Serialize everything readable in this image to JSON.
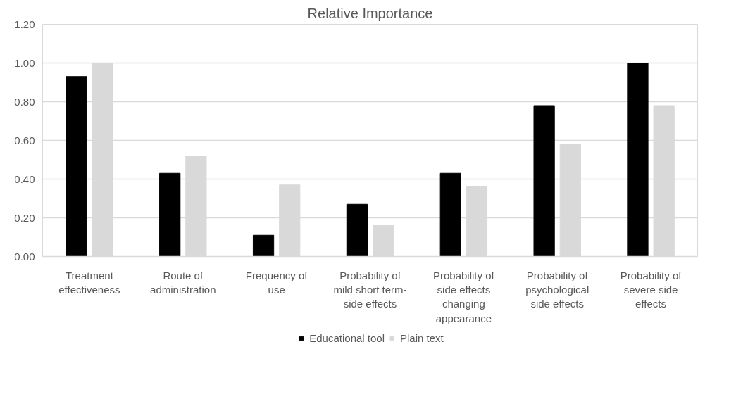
{
  "chart_data": {
    "type": "bar",
    "title": "Relative Importance",
    "categories": [
      "Treatment\neffectiveness",
      "Route of\nadministration",
      "Frequency of\nuse",
      "Probability of\nmild short term-\nside effects",
      "Probability of\nside effects\nchanging\nappearance",
      "Probability of\npsychological\nside effects",
      "Probability of\nsevere side\neffects"
    ],
    "series": [
      {
        "name": "Educational tool",
        "color": "#000000",
        "values": [
          0.93,
          0.43,
          0.11,
          0.27,
          0.43,
          0.78,
          1.0
        ]
      },
      {
        "name": "Plain text",
        "color": "#d9d9d9",
        "values": [
          1.0,
          0.52,
          0.37,
          0.16,
          0.36,
          0.58,
          0.78
        ]
      }
    ],
    "ylim": [
      0,
      1.2
    ],
    "yticks": [
      {
        "value": 0,
        "label": "0.00"
      },
      {
        "value": 0.2,
        "label": "0.20"
      },
      {
        "value": 0.4,
        "label": "0.40"
      },
      {
        "value": 0.6,
        "label": "0.60"
      },
      {
        "value": 0.8,
        "label": "0.80"
      },
      {
        "value": 1.0,
        "label": "1.00"
      },
      {
        "value": 1.2,
        "label": "1.20"
      }
    ],
    "grid": "y",
    "legend": "bottom"
  }
}
